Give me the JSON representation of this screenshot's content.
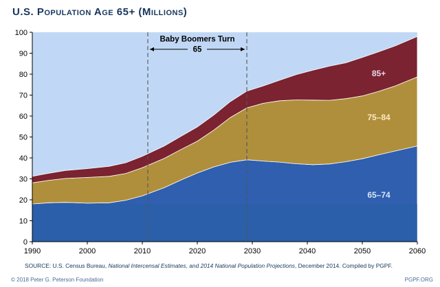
{
  "header": {
    "title": "U.S. Population Age 65+ (Millions)"
  },
  "chart_data": {
    "type": "area",
    "stacked": true,
    "title": "U.S. Population Age 65+ (Millions)",
    "xlabel": "",
    "ylabel": "",
    "xlim": [
      1990,
      2060
    ],
    "ylim": [
      0,
      100
    ],
    "x_ticks": [
      1990,
      2000,
      2010,
      2020,
      2030,
      2040,
      2050,
      2060
    ],
    "y_ticks": [
      0,
      10,
      20,
      30,
      40,
      50,
      60,
      70,
      80,
      90,
      100
    ],
    "grid": false,
    "x": [
      1990,
      1993,
      1996,
      2000,
      2004,
      2007,
      2010,
      2014,
      2017,
      2020,
      2023,
      2026,
      2029,
      2032,
      2035,
      2038,
      2041,
      2044,
      2047,
      2050,
      2053,
      2056,
      2060
    ],
    "series": [
      {
        "name": "65–74",
        "color": "#2f5fae",
        "values": [
          18.0,
          18.6,
          18.8,
          18.4,
          18.6,
          19.8,
          21.9,
          25.8,
          29.4,
          32.8,
          35.7,
          37.9,
          39.1,
          38.5,
          38.0,
          37.2,
          36.8,
          37.1,
          38.2,
          39.6,
          41.5,
          43.3,
          45.7
        ]
      },
      {
        "name": "75–84",
        "color": "#b08f3c",
        "values": [
          10.1,
          10.7,
          11.4,
          12.3,
          12.6,
          12.8,
          13.4,
          14.0,
          14.6,
          15.2,
          17.6,
          21.4,
          24.8,
          27.6,
          29.3,
          30.5,
          30.8,
          30.4,
          30.1,
          30.0,
          30.3,
          31.1,
          33.0
        ]
      },
      {
        "name": "85+",
        "color": "#7b2330",
        "values": [
          3.1,
          3.4,
          3.8,
          4.2,
          4.8,
          5.1,
          5.5,
          5.9,
          6.3,
          6.8,
          7.2,
          7.6,
          8.0,
          8.3,
          9.8,
          12.1,
          14.3,
          16.3,
          17.1,
          18.4,
          18.9,
          19.1,
          19.3
        ]
      }
    ],
    "annotations": [
      {
        "text_line1": "Baby Boomers Turn",
        "text_line2": "65"
      }
    ],
    "boomer_start": 2011,
    "boomer_end": 2029,
    "series_labels": {
      "85+": {
        "x": 2053,
        "y": 79
      },
      "75–84": {
        "x": 2053,
        "y": 58
      },
      "65–74": {
        "x": 2053,
        "y": 21
      }
    },
    "legend": "inline",
    "colors": {
      "plot_background": "#c0d8f5",
      "lower_band": "#2a5fa6",
      "axis": "#000000"
    }
  },
  "footer": {
    "source_prefix": "SOURCE: U.S. Census Bureau, ",
    "source_italic1": "National Intercensal Estimates",
    "source_mid": ", and ",
    "source_italic2": "2014 National Population Projections",
    "source_suffix": ", December 2014. Compiled by PGPF.",
    "copyright": "© 2018 Peter G. Peterson Foundation",
    "site": "PGPF.ORG"
  }
}
